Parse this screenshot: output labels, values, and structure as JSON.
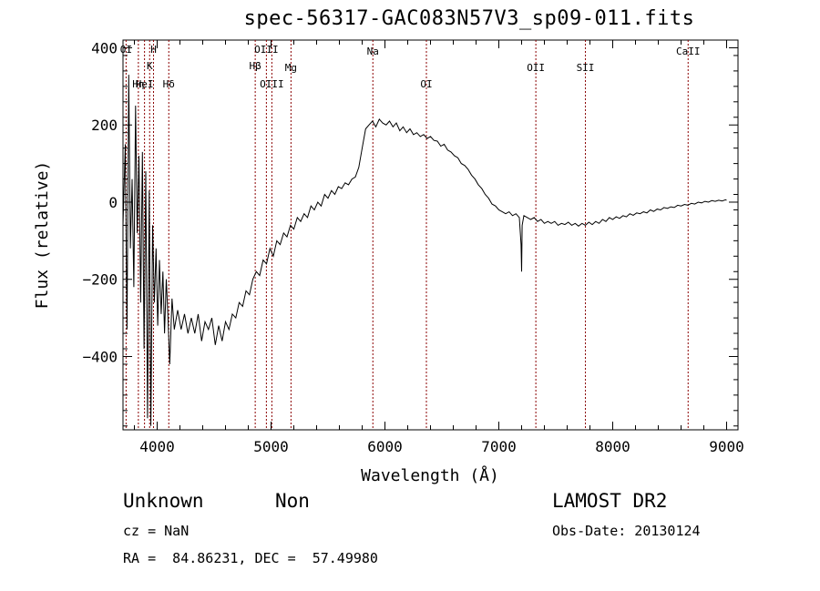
{
  "chart_data": {
    "type": "line",
    "title": "spec-56317-GAC083N57V3_sp09-011.fits",
    "xlabel": "Wavelength (Å)",
    "ylabel": "Flux (relative)",
    "xlim": [
      3700,
      9100
    ],
    "ylim": [
      -590,
      420
    ],
    "xticks": [
      4000,
      5000,
      6000,
      7000,
      8000,
      9000
    ],
    "yticks": [
      -400,
      -200,
      0,
      200,
      400
    ],
    "line_color": "#000000",
    "marker_color": "#8b0000",
    "lines": [
      {
        "label": "OI",
        "wavelength": 3727
      },
      {
        "label": "Hη",
        "wavelength": 3835
      },
      {
        "label": "H",
        "wavelength": 3968
      },
      {
        "label": "K",
        "wavelength": 3934
      },
      {
        "label": "HeI",
        "wavelength": 3889
      },
      {
        "label": "Hδ",
        "wavelength": 4102
      },
      {
        "label": "Hβ",
        "wavelength": 4861
      },
      {
        "label": "OIII",
        "wavelength": 4959
      },
      {
        "label": "OIII",
        "wavelength": 5007
      },
      {
        "label": "Mg",
        "wavelength": 5175
      },
      {
        "label": "Na",
        "wavelength": 5894
      },
      {
        "label": "OI",
        "wavelength": 6364
      },
      {
        "label": "OII",
        "wavelength": 7325
      },
      {
        "label": "SII",
        "wavelength": 7760
      },
      {
        "label": "CaII",
        "wavelength": 8662
      }
    ],
    "spectrum": [
      [
        3700,
        -60
      ],
      [
        3720,
        150
      ],
      [
        3735,
        -330
      ],
      [
        3750,
        330
      ],
      [
        3765,
        -120
      ],
      [
        3780,
        60
      ],
      [
        3795,
        -220
      ],
      [
        3810,
        250
      ],
      [
        3825,
        -80
      ],
      [
        3840,
        120
      ],
      [
        3855,
        -260
      ],
      [
        3870,
        130
      ],
      [
        3885,
        -380
      ],
      [
        3900,
        80
      ],
      [
        3915,
        -560
      ],
      [
        3930,
        30
      ],
      [
        3945,
        -580
      ],
      [
        3960,
        -60
      ],
      [
        3975,
        -260
      ],
      [
        3990,
        -120
      ],
      [
        4005,
        -320
      ],
      [
        4020,
        -150
      ],
      [
        4035,
        -290
      ],
      [
        4050,
        -180
      ],
      [
        4065,
        -340
      ],
      [
        4080,
        -200
      ],
      [
        4095,
        -300
      ],
      [
        4110,
        -420
      ],
      [
        4130,
        -250
      ],
      [
        4150,
        -330
      ],
      [
        4180,
        -280
      ],
      [
        4210,
        -330
      ],
      [
        4240,
        -290
      ],
      [
        4270,
        -340
      ],
      [
        4300,
        -300
      ],
      [
        4330,
        -340
      ],
      [
        4360,
        -290
      ],
      [
        4390,
        -360
      ],
      [
        4420,
        -310
      ],
      [
        4450,
        -330
      ],
      [
        4480,
        -300
      ],
      [
        4510,
        -370
      ],
      [
        4540,
        -320
      ],
      [
        4570,
        -360
      ],
      [
        4600,
        -310
      ],
      [
        4630,
        -330
      ],
      [
        4660,
        -290
      ],
      [
        4690,
        -300
      ],
      [
        4720,
        -260
      ],
      [
        4750,
        -270
      ],
      [
        4780,
        -230
      ],
      [
        4810,
        -240
      ],
      [
        4840,
        -200
      ],
      [
        4870,
        -180
      ],
      [
        4900,
        -190
      ],
      [
        4930,
        -150
      ],
      [
        4960,
        -160
      ],
      [
        4990,
        -120
      ],
      [
        5020,
        -140
      ],
      [
        5050,
        -100
      ],
      [
        5080,
        -110
      ],
      [
        5110,
        -80
      ],
      [
        5140,
        -90
      ],
      [
        5170,
        -60
      ],
      [
        5200,
        -70
      ],
      [
        5230,
        -40
      ],
      [
        5260,
        -50
      ],
      [
        5290,
        -30
      ],
      [
        5320,
        -40
      ],
      [
        5350,
        -10
      ],
      [
        5380,
        -20
      ],
      [
        5410,
        0
      ],
      [
        5440,
        -10
      ],
      [
        5470,
        20
      ],
      [
        5500,
        10
      ],
      [
        5530,
        30
      ],
      [
        5560,
        20
      ],
      [
        5590,
        40
      ],
      [
        5620,
        35
      ],
      [
        5650,
        50
      ],
      [
        5680,
        45
      ],
      [
        5710,
        60
      ],
      [
        5740,
        65
      ],
      [
        5770,
        90
      ],
      [
        5800,
        140
      ],
      [
        5830,
        190
      ],
      [
        5860,
        200
      ],
      [
        5890,
        210
      ],
      [
        5920,
        195
      ],
      [
        5950,
        215
      ],
      [
        5980,
        205
      ],
      [
        6010,
        200
      ],
      [
        6040,
        210
      ],
      [
        6070,
        195
      ],
      [
        6100,
        205
      ],
      [
        6130,
        185
      ],
      [
        6160,
        195
      ],
      [
        6190,
        180
      ],
      [
        6220,
        190
      ],
      [
        6250,
        175
      ],
      [
        6280,
        180
      ],
      [
        6310,
        170
      ],
      [
        6340,
        175
      ],
      [
        6370,
        165
      ],
      [
        6400,
        170
      ],
      [
        6430,
        160
      ],
      [
        6460,
        158
      ],
      [
        6490,
        145
      ],
      [
        6520,
        150
      ],
      [
        6550,
        135
      ],
      [
        6580,
        130
      ],
      [
        6610,
        120
      ],
      [
        6640,
        115
      ],
      [
        6670,
        100
      ],
      [
        6700,
        95
      ],
      [
        6730,
        85
      ],
      [
        6760,
        70
      ],
      [
        6790,
        60
      ],
      [
        6820,
        45
      ],
      [
        6850,
        35
      ],
      [
        6880,
        20
      ],
      [
        6910,
        10
      ],
      [
        6940,
        -5
      ],
      [
        6970,
        -10
      ],
      [
        7000,
        -20
      ],
      [
        7030,
        -25
      ],
      [
        7060,
        -30
      ],
      [
        7090,
        -25
      ],
      [
        7120,
        -35
      ],
      [
        7150,
        -30
      ],
      [
        7180,
        -40
      ],
      [
        7195,
        -110
      ],
      [
        7200,
        -180
      ],
      [
        7205,
        -60
      ],
      [
        7220,
        -35
      ],
      [
        7250,
        -40
      ],
      [
        7280,
        -45
      ],
      [
        7310,
        -40
      ],
      [
        7340,
        -50
      ],
      [
        7370,
        -45
      ],
      [
        7400,
        -55
      ],
      [
        7430,
        -50
      ],
      [
        7460,
        -55
      ],
      [
        7490,
        -50
      ],
      [
        7520,
        -60
      ],
      [
        7550,
        -55
      ],
      [
        7580,
        -58
      ],
      [
        7610,
        -52
      ],
      [
        7640,
        -60
      ],
      [
        7670,
        -55
      ],
      [
        7700,
        -62
      ],
      [
        7730,
        -55
      ],
      [
        7760,
        -60
      ],
      [
        7790,
        -52
      ],
      [
        7820,
        -58
      ],
      [
        7850,
        -50
      ],
      [
        7880,
        -55
      ],
      [
        7910,
        -45
      ],
      [
        7940,
        -50
      ],
      [
        7970,
        -40
      ],
      [
        8000,
        -45
      ],
      [
        8030,
        -38
      ],
      [
        8060,
        -42
      ],
      [
        8090,
        -35
      ],
      [
        8120,
        -38
      ],
      [
        8150,
        -30
      ],
      [
        8180,
        -34
      ],
      [
        8210,
        -28
      ],
      [
        8240,
        -30
      ],
      [
        8270,
        -25
      ],
      [
        8300,
        -28
      ],
      [
        8330,
        -20
      ],
      [
        8360,
        -24
      ],
      [
        8390,
        -18
      ],
      [
        8420,
        -20
      ],
      [
        8450,
        -14
      ],
      [
        8480,
        -16
      ],
      [
        8510,
        -12
      ],
      [
        8540,
        -14
      ],
      [
        8570,
        -8
      ],
      [
        8600,
        -10
      ],
      [
        8630,
        -6
      ],
      [
        8660,
        -8
      ],
      [
        8690,
        -3
      ],
      [
        8720,
        -5
      ],
      [
        8750,
        0
      ],
      [
        8780,
        -2
      ],
      [
        8810,
        2
      ],
      [
        8840,
        0
      ],
      [
        8870,
        4
      ],
      [
        8900,
        2
      ],
      [
        8930,
        5
      ],
      [
        8960,
        3
      ],
      [
        8990,
        6
      ],
      [
        9000,
        5
      ]
    ]
  },
  "info": {
    "object_class": "Unknown",
    "subclass": "Non",
    "survey": "LAMOST DR2",
    "cz": "cz = NaN",
    "obs_date": "Obs-Date: 20130124",
    "coords": "RA =  84.86231, DEC =  57.49980"
  }
}
